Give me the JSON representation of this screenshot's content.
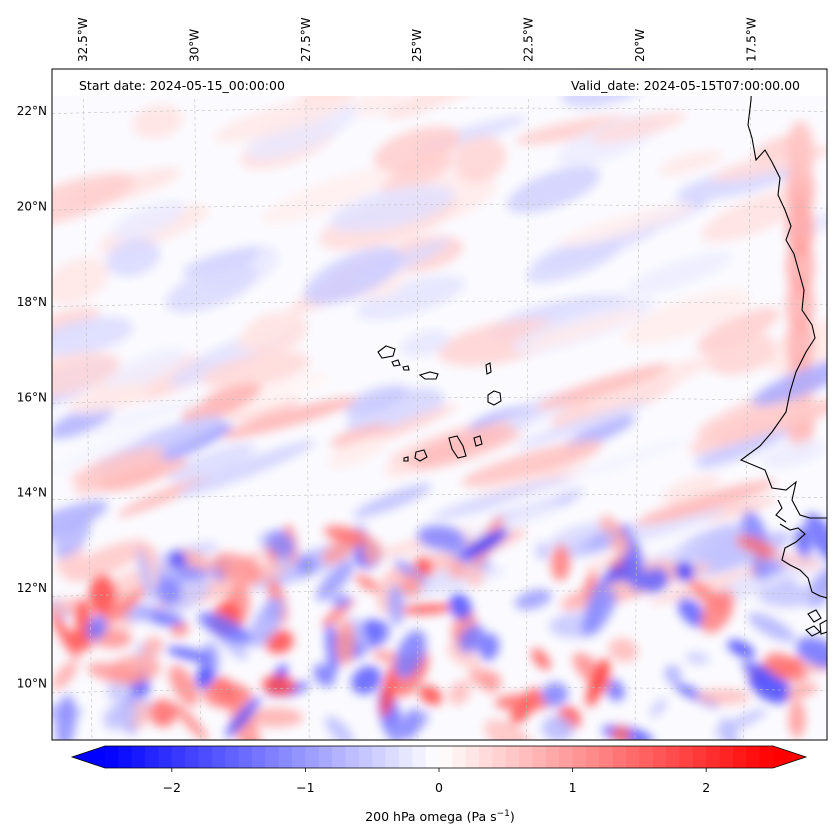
{
  "header": {
    "start_date": "Start date: 2024-05-15_00:00:00",
    "valid_date": "Valid_date: 2024-05-15T07:00:00.00"
  },
  "axes": {
    "lon_ticks": [
      "32.5°W",
      "30°W",
      "27.5°W",
      "25°W",
      "22.5°W",
      "20°W",
      "17.5°W"
    ],
    "lat_ticks": [
      "22°N",
      "20°N",
      "18°N",
      "16°N",
      "14°N",
      "12°N",
      "10°N"
    ],
    "lon_values": [
      -32.5,
      -30,
      -27.5,
      -25,
      -22.5,
      -20,
      -17.5
    ],
    "lat_values": [
      22,
      20,
      18,
      16,
      14,
      12,
      10
    ],
    "lon_range": [
      -33.2,
      -15.8
    ],
    "lat_range": [
      8.9,
      22.8
    ],
    "gridlines": true
  },
  "colorbar": {
    "label_prefix": "200 hPa omega (Pa s",
    "label_exponent": "−1",
    "label_suffix": ")",
    "ticks": [
      "−2",
      "−1",
      "0",
      "1",
      "2"
    ],
    "tick_values": [
      -2,
      -1,
      0,
      1,
      2
    ],
    "range": [
      -2.5,
      2.5
    ],
    "colormap": "bwr",
    "extend": "both",
    "color_low": "#0000ff",
    "color_mid": "#ffffff",
    "color_high": "#ff0000"
  },
  "chart_data": {
    "type": "heatmap",
    "variable": "200 hPa omega",
    "units": "Pa s-1",
    "lon_range": [
      -33.2,
      -15.8
    ],
    "lat_range": [
      8.9,
      22.8
    ],
    "value_range": [
      -2.5,
      2.5
    ]
  }
}
